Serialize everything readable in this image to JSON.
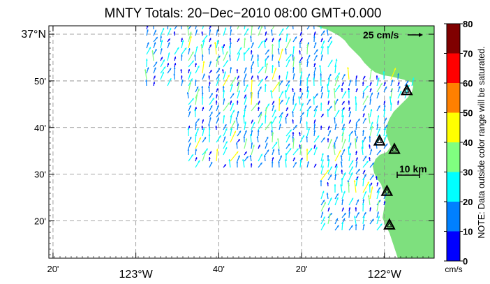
{
  "title": "MNTY Totals: 20−Dec−2010 08:00 GMT+0.000",
  "map": {
    "lon_range": [
      -123.35,
      -121.8
    ],
    "lat_range": [
      36.2,
      37.03
    ],
    "land_color": "#7ee07e",
    "x_ticks": [
      {
        "lon": -123.3333,
        "label": "20'"
      },
      {
        "lon": -123.0,
        "label": "123°W"
      },
      {
        "lon": -122.6667,
        "label": "40'"
      },
      {
        "lon": -122.3333,
        "label": "20'"
      },
      {
        "lon": -122.0,
        "label": "122°W"
      }
    ],
    "y_ticks": [
      {
        "lat": 37.0,
        "label": "37°N"
      },
      {
        "lat": 36.8333,
        "label": "50'"
      },
      {
        "lat": 36.6667,
        "label": "40'"
      },
      {
        "lat": 36.5,
        "label": "30'"
      },
      {
        "lat": 36.3333,
        "label": "20'"
      }
    ],
    "stations": [
      {
        "lon": -121.91,
        "lat": 36.8
      },
      {
        "lon": -122.02,
        "lat": 36.62
      },
      {
        "lon": -121.96,
        "lat": 36.59
      },
      {
        "lon": -121.99,
        "lat": 36.44
      },
      {
        "lon": -121.98,
        "lat": 36.32
      }
    ],
    "scale_vector_label": "25 cm/s",
    "scale_bar_label": "10 km"
  },
  "colorbar": {
    "ticks": [
      "0",
      "10",
      "20",
      "30",
      "40",
      "50",
      "60",
      "70",
      "80"
    ],
    "colors": [
      "#0000ff",
      "#0080ff",
      "#00ffff",
      "#80ff80",
      "#ffff00",
      "#ff8000",
      "#ff0000",
      "#800000"
    ],
    "unit": "cm/s",
    "note": "NOTE: Data outside color range will be saturated."
  }
}
